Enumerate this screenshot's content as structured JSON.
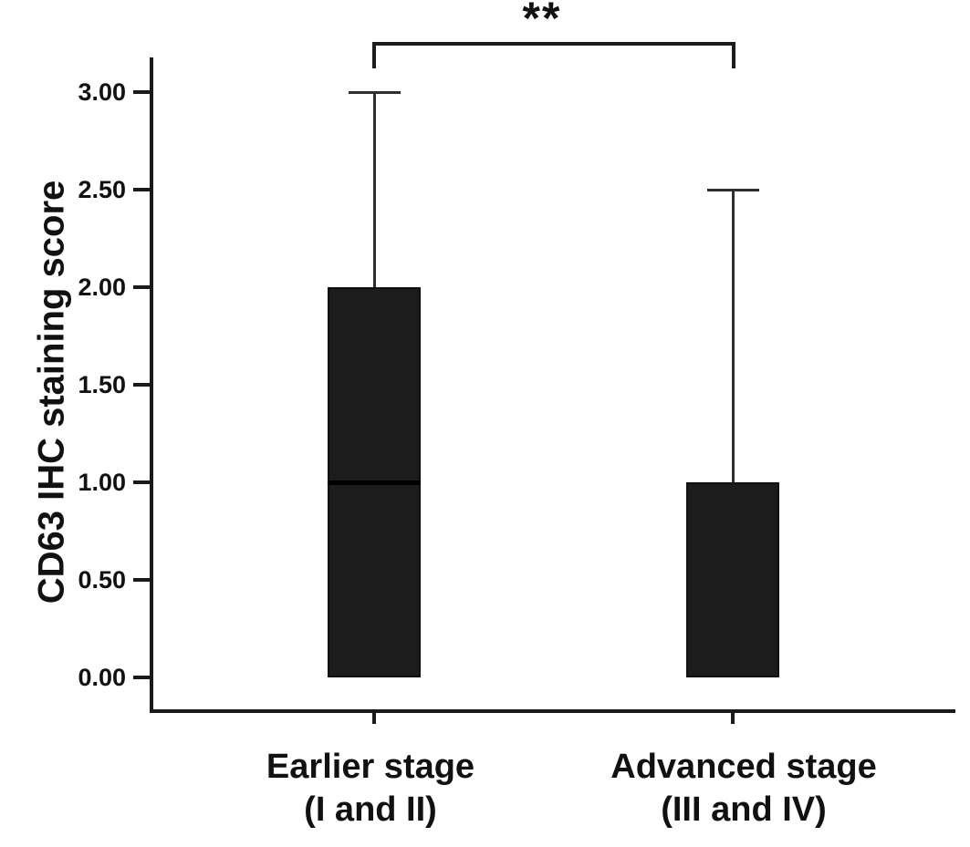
{
  "chart_data": {
    "type": "boxplot",
    "title": "",
    "ylabel": "CD63 IHC staining score",
    "xlabel": "",
    "ylim": [
      0,
      3.2
    ],
    "yticks": [
      0.0,
      0.5,
      1.0,
      1.5,
      2.0,
      2.5,
      3.0
    ],
    "ytick_labels": [
      "0.00",
      "0.50",
      "1.00",
      "1.50",
      "2.00",
      "2.50",
      "3.00"
    ],
    "grid": "off",
    "legend": "none",
    "categories": [
      "Earlier stage (I and II)",
      "Advanced stage (III and IV)"
    ],
    "boxes": [
      {
        "category_line1": "Earlier stage",
        "category_line2": "(I and II)",
        "whisker_low": 0.0,
        "q1": 0.0,
        "median": 1.0,
        "q3": 2.0,
        "whisker_high": 3.0
      },
      {
        "category_line1": "Advanced stage",
        "category_line2": "(III and IV)",
        "whisker_low": 0.0,
        "q1": 0.0,
        "median": null,
        "q3": 1.0,
        "whisker_high": 2.5
      }
    ],
    "significance": {
      "label": "**",
      "between_categories": [
        0,
        1
      ]
    },
    "colors": {
      "box_fill": "#1c1c1c",
      "line": "#1a1a1a",
      "background": "#ffffff"
    }
  }
}
